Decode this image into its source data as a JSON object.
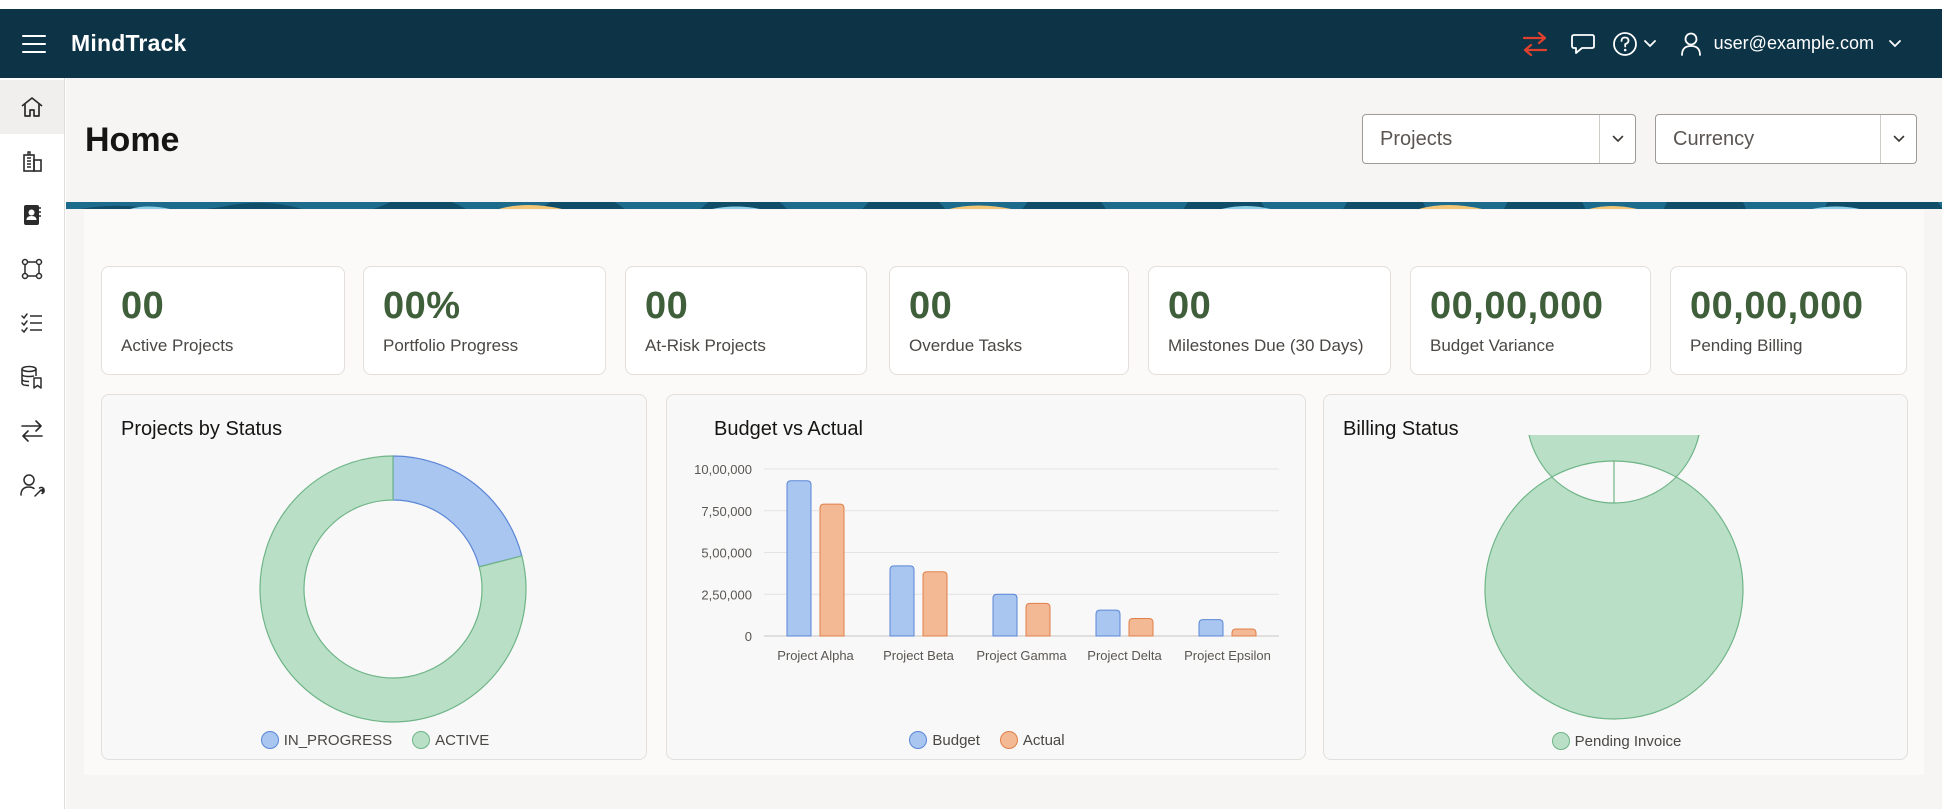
{
  "app": {
    "title": "MindTrack"
  },
  "header": {
    "user_email": "user@example.com"
  },
  "sidebar": {
    "items": [
      {
        "icon": "home-icon"
      },
      {
        "icon": "building-icon"
      },
      {
        "icon": "address-book-icon"
      },
      {
        "icon": "workflow-nodes-icon"
      },
      {
        "icon": "checklist-icon"
      },
      {
        "icon": "database-bookmark-icon"
      },
      {
        "icon": "transfer-arrows-icon"
      },
      {
        "icon": "user-settings-icon"
      }
    ]
  },
  "page": {
    "title": "Home",
    "filters": {
      "projects_placeholder": "Projects",
      "currency_placeholder": "Currency"
    }
  },
  "kpis": [
    {
      "value": "00",
      "label": "Active Projects"
    },
    {
      "value": "00%",
      "label": "Portfolio Progress"
    },
    {
      "value": "00",
      "label": "At-Risk Projects"
    },
    {
      "value": "00",
      "label": "Overdue Tasks"
    },
    {
      "value": "00",
      "label": "Milestones Due (30 Days)"
    },
    {
      "value": "00,00,000",
      "label": "Budget Variance"
    },
    {
      "value": "00,00,000",
      "label": "Pending Billing"
    }
  ],
  "colors": {
    "header_bg": "#0c3346",
    "kpi_value": "#3f5e3a",
    "blue_series": "#a9c6f0",
    "blue_stroke": "#5b86d6",
    "green_series": "#b9e0c6",
    "green_stroke": "#6fb487",
    "orange_series": "#f3b994",
    "orange_stroke": "#e0804a",
    "sync_icon": "#e0412f"
  },
  "chart_data": [
    {
      "type": "pie",
      "title": "Projects by Status",
      "donut": true,
      "slices": [
        {
          "name": "IN_PROGRESS",
          "value": 21
        },
        {
          "name": "ACTIVE",
          "value": 79
        }
      ],
      "legend": [
        "IN_PROGRESS",
        "ACTIVE"
      ],
      "legend_position": "bottom"
    },
    {
      "type": "bar",
      "title": "Budget vs Actual",
      "categories": [
        "Project Alpha",
        "Project Beta",
        "Project Gamma",
        "Project Delta",
        "Project Epsilon"
      ],
      "series": [
        {
          "name": "Budget",
          "values": [
            930000,
            420000,
            250000,
            155000,
            98000
          ]
        },
        {
          "name": "Actual",
          "values": [
            790000,
            385000,
            195000,
            105000,
            42000
          ]
        }
      ],
      "ylim": [
        0,
        1000000
      ],
      "yticks": [
        "0",
        "2,50,000",
        "5,00,000",
        "7,50,000",
        "10,00,000"
      ],
      "ytick_values": [
        0,
        250000,
        500000,
        750000,
        1000000
      ],
      "grid": true,
      "legend_position": "bottom"
    },
    {
      "type": "pie",
      "title": "Billing Status",
      "donut": true,
      "slices": [
        {
          "name": "Pending Invoice",
          "value": 100
        }
      ],
      "legend": [
        "Pending Invoice"
      ],
      "legend_position": "bottom"
    }
  ]
}
